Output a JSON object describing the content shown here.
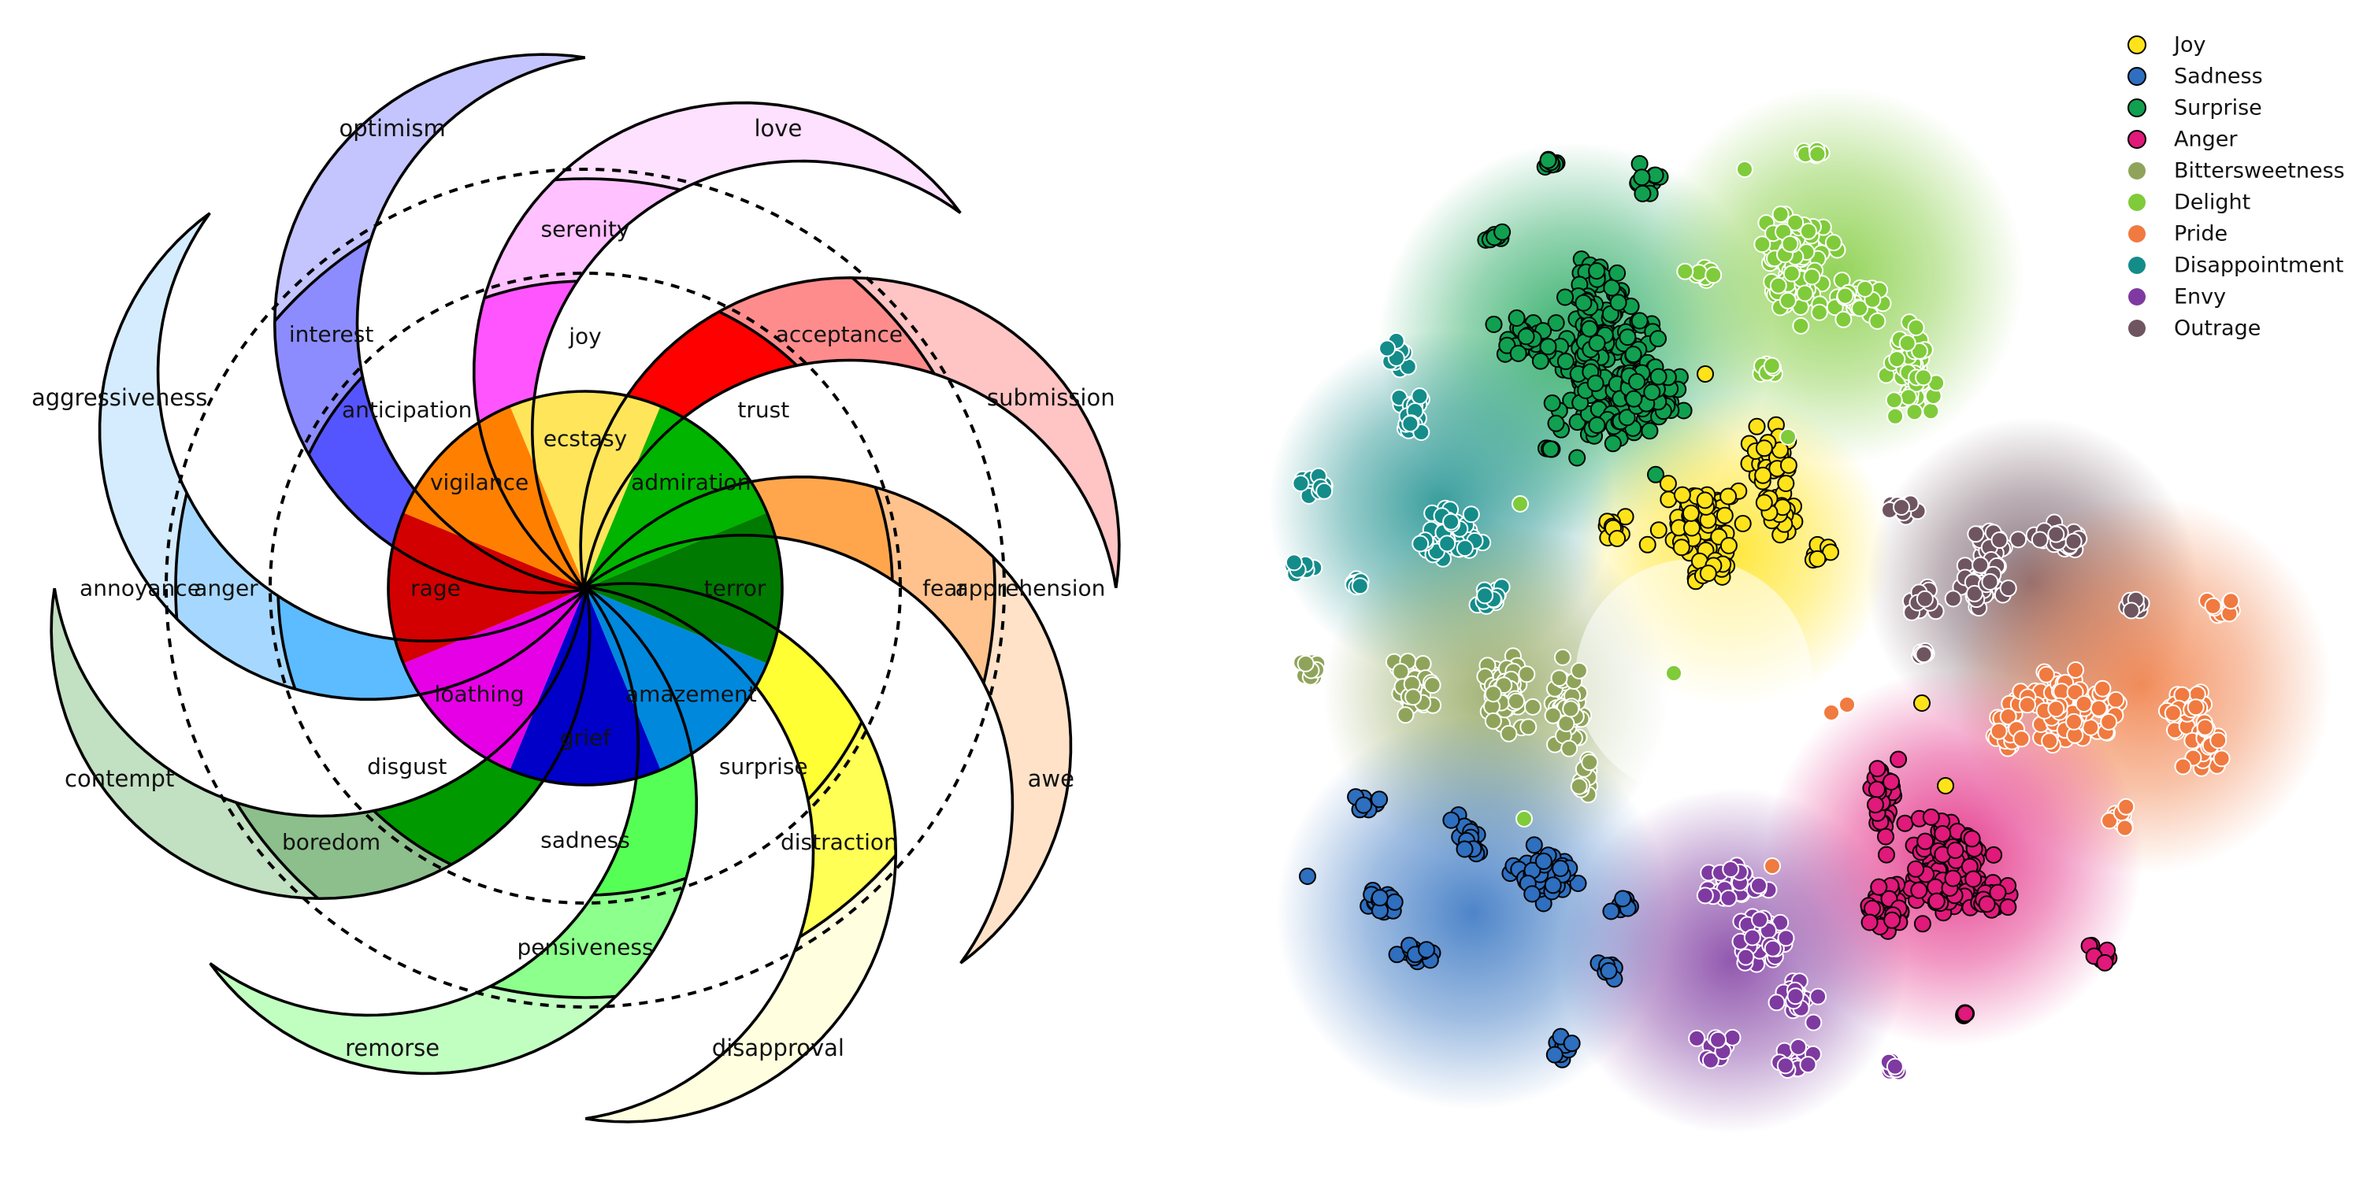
{
  "wheel": {
    "colors": {
      "outer": [
        "#ffffe0",
        "#c1ffc1",
        "#c2e0c2",
        "#d4ecfe",
        "#c4c4ff",
        "#fee0ff",
        "#ffc4c4",
        "#ffe2c8"
      ],
      "middle": [
        "#ffff55",
        "#8cff8c",
        "#8cbf8c",
        "#a6d8ff",
        "#8c8cff",
        "#ffc1ff",
        "#ff8c8c",
        "#ffc28c"
      ],
      "inner": [
        "#ffff33",
        "#55ff55",
        "#009900",
        "#5dbbff",
        "#5555ff",
        "#ff55ff",
        "#ff0000",
        "#ffa64d"
      ],
      "core": [
        "#ffe55a",
        "#00b400",
        "#007a00",
        "#0088dd",
        "#0000c8",
        "#e600e6",
        "#d20000",
        "#ff8000"
      ]
    },
    "petals": [
      {
        "outer": "",
        "middle": "serenity",
        "inner": "joy",
        "core": "ecstasy"
      },
      {
        "outer": "",
        "middle": "acceptance",
        "inner": "trust",
        "core": "admiration"
      },
      {
        "outer": "apprehension",
        "middle": "fear",
        "inner": "",
        "core": "terror"
      },
      {
        "outer": "",
        "middle": "distraction",
        "inner": "surprise",
        "core": "amazement"
      },
      {
        "outer": "",
        "middle": "pensiveness",
        "inner": "sadness",
        "core": "grief"
      },
      {
        "outer": "",
        "middle": "boredom",
        "inner": "disgust",
        "core": "loathing"
      },
      {
        "outer": "annoyance",
        "middle": "anger",
        "inner": "",
        "core": "rage"
      },
      {
        "outer": "",
        "middle": "interest",
        "inner": "anticipation",
        "core": "vigilance"
      }
    ],
    "dyads": [
      "love",
      "submission",
      "awe",
      "disapproval",
      "remorse",
      "contempt",
      "aggressiveness",
      "optimism"
    ]
  },
  "scatter": {
    "legend": [
      {
        "name": "Joy",
        "color": "#ffe31a"
      },
      {
        "name": "Sadness",
        "color": "#2e6fbf"
      },
      {
        "name": "Surprise",
        "color": "#10a050"
      },
      {
        "name": "Anger",
        "color": "#e0197a"
      },
      {
        "name": "Bittersweetness",
        "color": "#8fa45a"
      },
      {
        "name": "Delight",
        "color": "#7fcb3a"
      },
      {
        "name": "Pride",
        "color": "#f07a40"
      },
      {
        "name": "Disappointment",
        "color": "#148c8a"
      },
      {
        "name": "Envy",
        "color": "#7e3aa0"
      },
      {
        "name": "Outrage",
        "color": "#6e5560"
      }
    ]
  }
}
